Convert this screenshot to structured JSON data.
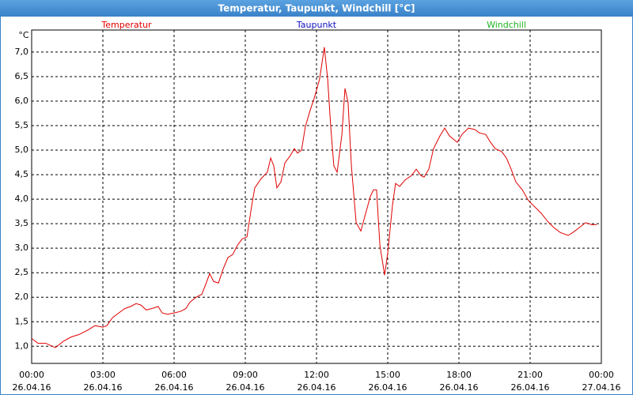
{
  "chart_data": {
    "type": "line",
    "title": "Temperatur, Taupunkt, Windchill [°C]",
    "y_label": "°C",
    "xlim": [
      0,
      24
    ],
    "ylim": [
      0.65,
      7.45
    ],
    "xticks": [
      {
        "value": 0,
        "label": "00:00",
        "date": "26.04.16"
      },
      {
        "value": 3,
        "label": "03:00",
        "date": "26.04.16"
      },
      {
        "value": 6,
        "label": "06:00",
        "date": "26.04.16"
      },
      {
        "value": 9,
        "label": "09:00",
        "date": "26.04.16"
      },
      {
        "value": 12,
        "label": "12:00",
        "date": "26.04.16"
      },
      {
        "value": 15,
        "label": "15:00",
        "date": "26.04.16"
      },
      {
        "value": 18,
        "label": "18:00",
        "date": "26.04.16"
      },
      {
        "value": 21,
        "label": "21:00",
        "date": "26.04.16"
      },
      {
        "value": 24,
        "label": "00:00",
        "date": "27.04.16"
      }
    ],
    "yticks": [
      {
        "value": 1.0,
        "label": "1,0"
      },
      {
        "value": 1.5,
        "label": "1,5"
      },
      {
        "value": 2.0,
        "label": "2,0"
      },
      {
        "value": 2.5,
        "label": "2,5"
      },
      {
        "value": 3.0,
        "label": "3,0"
      },
      {
        "value": 3.5,
        "label": "3,5"
      },
      {
        "value": 4.0,
        "label": "4,0"
      },
      {
        "value": 4.5,
        "label": "4,5"
      },
      {
        "value": 5.0,
        "label": "5,0"
      },
      {
        "value": 5.5,
        "label": "5,5"
      },
      {
        "value": 6.0,
        "label": "6,0"
      },
      {
        "value": 6.5,
        "label": "6,5"
      },
      {
        "value": 7.0,
        "label": "7,0"
      }
    ],
    "grid": true,
    "x": [
      0,
      0.27,
      0.6,
      1,
      1.33,
      1.67,
      2,
      2.33,
      2.67,
      3,
      3.17,
      3.4,
      3.67,
      3.93,
      4.17,
      4.4,
      4.6,
      4.83,
      5.07,
      5.33,
      5.5,
      5.73,
      6,
      6.27,
      6.5,
      6.67,
      6.93,
      7.17,
      7.33,
      7.5,
      7.67,
      7.87,
      8.07,
      8.27,
      8.47,
      8.67,
      8.87,
      9.07,
      9.27,
      9.4,
      9.67,
      9.93,
      10.07,
      10.2,
      10.33,
      10.5,
      10.67,
      10.87,
      11.07,
      11.2,
      11.37,
      11.53,
      11.73,
      11.93,
      12.13,
      12.33,
      12.47,
      12.6,
      12.73,
      12.87,
      13.07,
      13.2,
      13.33,
      13.47,
      13.67,
      13.87,
      14.07,
      14.27,
      14.4,
      14.53,
      14.67,
      14.87,
      15,
      15.2,
      15.33,
      15.5,
      15.73,
      16,
      16.2,
      16.4,
      16.53,
      16.73,
      16.93,
      17.2,
      17.4,
      17.6,
      17.93,
      18.13,
      18.4,
      18.67,
      18.87,
      19.13,
      19.33,
      19.53,
      19.8,
      20,
      20.2,
      20.4,
      20.67,
      20.93,
      21.2,
      21.47,
      21.73,
      22,
      22.27,
      22.6,
      22.8,
      23.07,
      23.33,
      23.6,
      23.8
    ],
    "series": [
      {
        "name": "Temperatur",
        "color": "#e00000",
        "values": [
          1.16,
          1.06,
          1.06,
          0.97,
          1.1,
          1.19,
          1.24,
          1.32,
          1.42,
          1.39,
          1.42,
          1.58,
          1.68,
          1.77,
          1.81,
          1.87,
          1.84,
          1.74,
          1.77,
          1.81,
          1.68,
          1.65,
          1.68,
          1.71,
          1.77,
          1.9,
          2.0,
          2.06,
          2.26,
          2.48,
          2.32,
          2.29,
          2.58,
          2.81,
          2.87,
          3.06,
          3.19,
          3.23,
          3.87,
          4.23,
          4.42,
          4.55,
          4.84,
          4.68,
          4.23,
          4.35,
          4.74,
          4.87,
          5.03,
          4.94,
          5.0,
          5.48,
          5.81,
          6.1,
          6.45,
          7.1,
          6.45,
          5.48,
          4.68,
          4.55,
          5.32,
          6.26,
          5.97,
          4.68,
          3.52,
          3.35,
          3.71,
          4.06,
          4.19,
          4.19,
          3.06,
          2.45,
          2.9,
          3.87,
          4.32,
          4.26,
          4.39,
          4.48,
          4.61,
          4.48,
          4.45,
          4.61,
          5.03,
          5.29,
          5.45,
          5.29,
          5.16,
          5.32,
          5.45,
          5.42,
          5.35,
          5.32,
          5.16,
          5.03,
          4.97,
          4.84,
          4.61,
          4.35,
          4.19,
          3.97,
          3.84,
          3.71,
          3.55,
          3.42,
          3.32,
          3.26,
          3.32,
          3.42,
          3.52,
          3.48,
          3.48
        ]
      },
      {
        "name": "Taupunkt",
        "color": "#1010c0"
      },
      {
        "name": "Windchill",
        "color": "#20b020"
      }
    ]
  }
}
